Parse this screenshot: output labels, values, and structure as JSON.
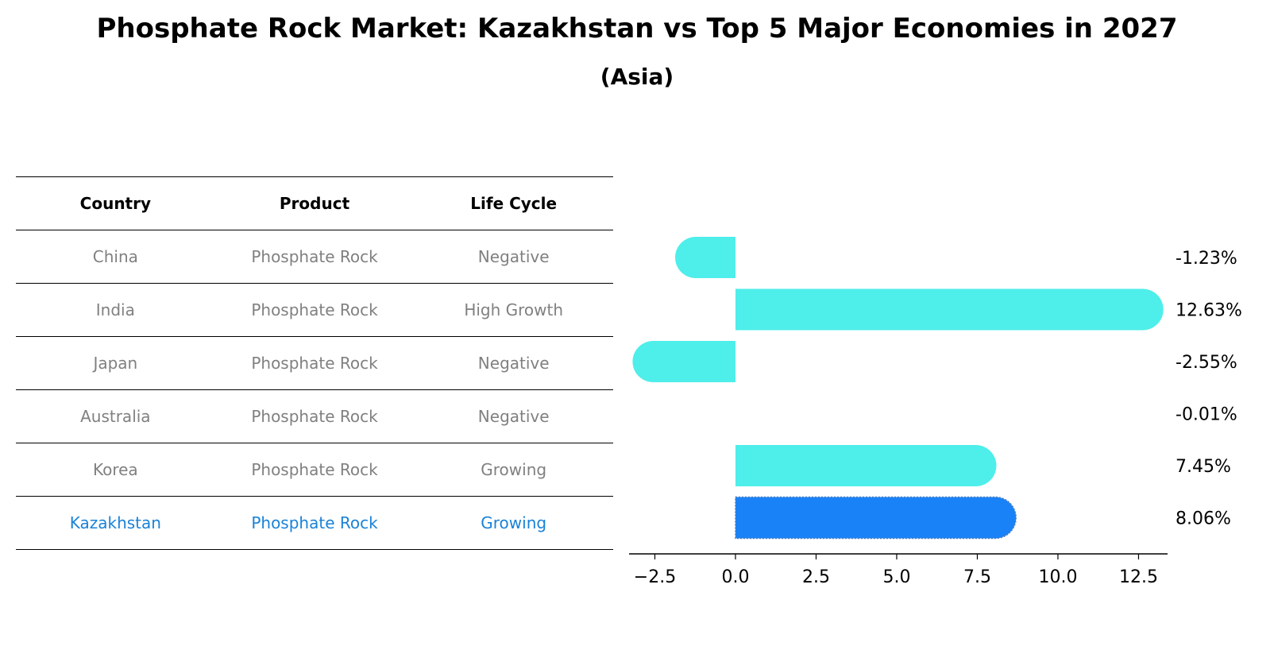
{
  "chart_data": {
    "type": "bar",
    "title": "Phosphate Rock Market: Kazakhstan vs Top 5 Major Economies in 2027",
    "subtitle": "(Asia)",
    "categories": [
      "China",
      "India",
      "Japan",
      "Australia",
      "Korea",
      "Kazakhstan"
    ],
    "values": [
      -1.23,
      12.63,
      -2.55,
      -0.01,
      7.45,
      8.06
    ],
    "value_labels": [
      "-1.23%",
      "12.63%",
      "-2.55%",
      "-0.01%",
      "7.45%",
      "8.06%"
    ],
    "highlight": "Kazakhstan",
    "xlim": [
      -3.3,
      13.4
    ],
    "xticks": [
      -2.5,
      0.0,
      2.5,
      5.0,
      7.5,
      10.0,
      12.5
    ],
    "xtick_labels": [
      "−2.5",
      "0.0",
      "2.5",
      "5.0",
      "7.5",
      "10.0",
      "12.5"
    ],
    "colors": {
      "default": "#4eeeea",
      "highlight": "#1a82f7"
    },
    "grid": false
  },
  "table": {
    "headers": [
      "Country",
      "Product",
      "Life Cycle"
    ],
    "rows": [
      [
        "China",
        "Phosphate Rock",
        "Negative"
      ],
      [
        "India",
        "Phosphate Rock",
        "High Growth"
      ],
      [
        "Japan",
        "Phosphate Rock",
        "Negative"
      ],
      [
        "Australia",
        "Phosphate Rock",
        "Negative"
      ],
      [
        "Korea",
        "Phosphate Rock",
        "Growing"
      ],
      [
        "Kazakhstan",
        "Phosphate Rock",
        "Growing"
      ]
    ],
    "highlight_row": 5,
    "highlight_color": "#1a82d8"
  }
}
